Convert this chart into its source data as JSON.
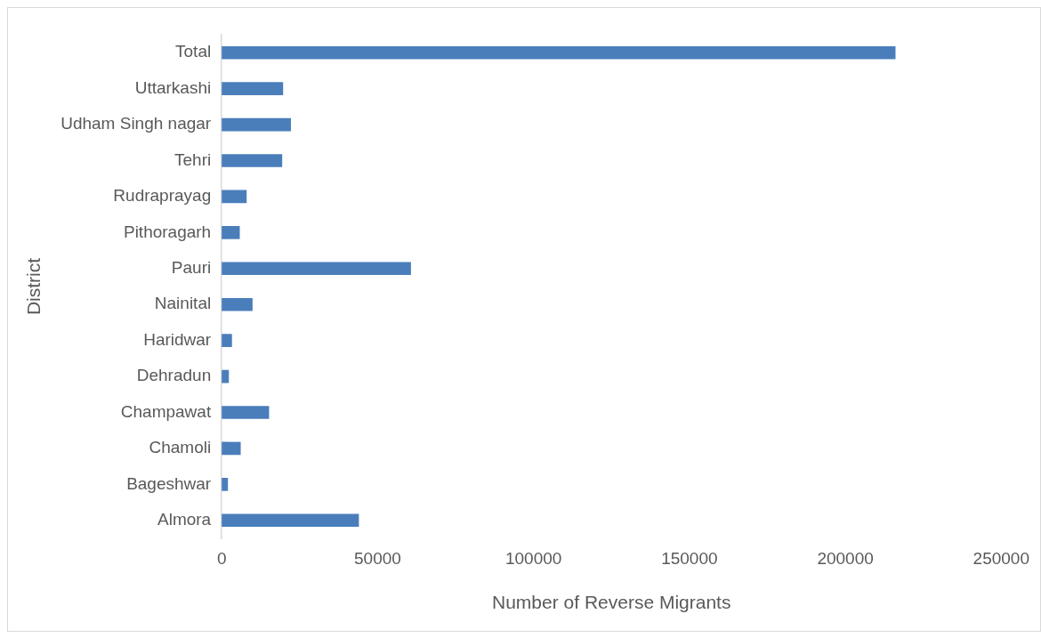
{
  "chart_data": {
    "type": "bar",
    "orientation": "horizontal",
    "xlabel": "Number of Reverse Migrants",
    "ylabel": "District",
    "categories": [
      "Total",
      "Uttarkashi",
      "Udham Singh nagar",
      "Tehri",
      "Rudraprayag",
      "Pithoragarh",
      "Pauri",
      "Nainital",
      "Haridwar",
      "Dehradun",
      "Champawat",
      "Chamoli",
      "Bageshwar",
      "Almora"
    ],
    "values": [
      216000,
      19600,
      22100,
      19300,
      7900,
      5700,
      60600,
      9800,
      3200,
      2200,
      15100,
      6000,
      1900,
      43900
    ],
    "color": "#4a7ebb",
    "xlim": [
      0,
      250000
    ],
    "xticks": [
      0,
      50000,
      100000,
      150000,
      200000,
      250000
    ],
    "grid": false,
    "legend": false
  }
}
